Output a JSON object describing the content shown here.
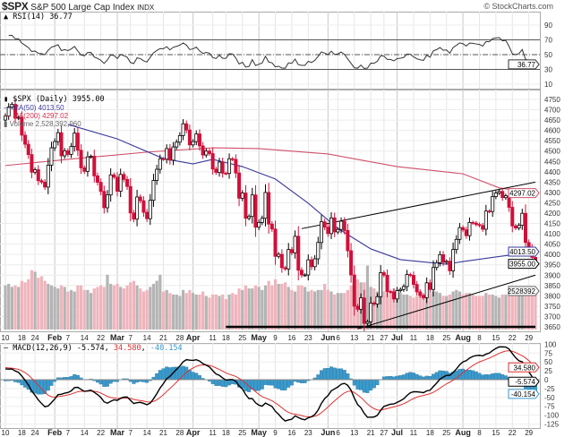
{
  "header": {
    "symbol": "$SPX",
    "name": "S&P 500 Large Cap Index",
    "exchange": "INDX",
    "copyright": "© StockCharts.com"
  },
  "rsi": {
    "label": "RSI(14) 36.77",
    "value": "36.77",
    "axis": [
      90,
      70,
      50,
      30,
      10
    ],
    "overbought": 70,
    "oversold": 30,
    "mid": 50
  },
  "price": {
    "label": "$SPX (Daily) 3955.00",
    "last": "3955.00",
    "ma50_label": "MA(50) 4013.50",
    "ma50_value": "4013.50",
    "ma200_label": "MA(200) 4297.02",
    "ma200_value": "4297.02",
    "volume_label": "Volume 2,528,392,960",
    "volume_value": "2528392",
    "axis": [
      4750,
      4700,
      4650,
      4600,
      4550,
      4500,
      4450,
      4400,
      4350,
      4300,
      4250,
      4200,
      4150,
      4100,
      4050,
      4000,
      3950,
      3900,
      3850,
      3800,
      3750,
      3700,
      3650
    ]
  },
  "macd": {
    "label_prefix": "MACD(12,26,9)",
    "macd": "-5.574",
    "signal": "34.580",
    "hist": "-40.154",
    "axis": [
      100,
      75,
      50,
      25,
      0,
      -25,
      -50,
      -75,
      -100,
      -125
    ]
  },
  "colors": {
    "up": "#ffffff",
    "down": "#d0103a",
    "ma50": "#3a3a9a",
    "ma200": "#d0506a",
    "vol_up": "#b4b4b4",
    "vol_down": "#f0b4bc",
    "macd": "#000000",
    "signal": "#e03030",
    "hist": "#3a9acc",
    "trend": "#000000"
  },
  "x_ticks": [
    {
      "label": "10",
      "date": "Jan 10"
    },
    {
      "label": "18",
      "date": "Jan 18"
    },
    {
      "label": "24",
      "date": "Jan 24"
    },
    {
      "label": "Feb",
      "date": "Feb 1",
      "month": true
    },
    {
      "label": "7",
      "date": "Feb 7"
    },
    {
      "label": "14",
      "date": "Feb 14"
    },
    {
      "label": "22",
      "date": "Feb 22"
    },
    {
      "label": "Mar",
      "date": "Mar 1",
      "month": true
    },
    {
      "label": "7",
      "date": "Mar 7"
    },
    {
      "label": "14",
      "date": "Mar 14"
    },
    {
      "label": "21",
      "date": "Mar 21"
    },
    {
      "label": "28",
      "date": "Mar 28"
    },
    {
      "label": "Apr",
      "date": "Apr 1",
      "month": true
    },
    {
      "label": "11",
      "date": "Apr 11"
    },
    {
      "label": "18",
      "date": "Apr 18"
    },
    {
      "label": "25",
      "date": "Apr 25"
    },
    {
      "label": "May",
      "date": "May 2",
      "month": true
    },
    {
      "label": "9",
      "date": "May 9"
    },
    {
      "label": "16",
      "date": "May 16"
    },
    {
      "label": "23",
      "date": "May 23"
    },
    {
      "label": "Jun",
      "date": "Jun 1",
      "month": true
    },
    {
      "label": "6",
      "date": "Jun 6"
    },
    {
      "label": "13",
      "date": "Jun 13"
    },
    {
      "label": "21",
      "date": "Jun 21"
    },
    {
      "label": "27",
      "date": "Jun 27"
    },
    {
      "label": "Jul",
      "date": "Jul 1",
      "month": true
    },
    {
      "label": "11",
      "date": "Jul 11"
    },
    {
      "label": "18",
      "date": "Jul 18"
    },
    {
      "label": "25",
      "date": "Jul 25"
    },
    {
      "label": "Aug",
      "date": "Aug 1",
      "month": true
    },
    {
      "label": "8",
      "date": "Aug 8"
    },
    {
      "label": "15",
      "date": "Aug 15"
    },
    {
      "label": "22",
      "date": "Aug 22"
    },
    {
      "label": "29",
      "date": "Aug 29"
    }
  ],
  "chart_data": {
    "type": "candlestick",
    "closes": [
      [
        "Jan 10",
        4670
      ],
      [
        "Jan 11",
        4713
      ],
      [
        "Jan 12",
        4726
      ],
      [
        "Jan 13",
        4659
      ],
      [
        "Jan 14",
        4663
      ],
      [
        "Jan 18",
        4577
      ],
      [
        "Jan 19",
        4533
      ],
      [
        "Jan 20",
        4483
      ],
      [
        "Jan 21",
        4398
      ],
      [
        "Jan 24",
        4410
      ],
      [
        "Jan 25",
        4357
      ],
      [
        "Jan 26",
        4350
      ],
      [
        "Jan 27",
        4326
      ],
      [
        "Jan 28",
        4432
      ],
      [
        "Jan 31",
        4516
      ],
      [
        "Feb 1",
        4546
      ],
      [
        "Feb 2",
        4589
      ],
      [
        "Feb 3",
        4477
      ],
      [
        "Feb 4",
        4501
      ],
      [
        "Feb 7",
        4484
      ],
      [
        "Feb 8",
        4522
      ],
      [
        "Feb 9",
        4587
      ],
      [
        "Feb 10",
        4504
      ],
      [
        "Feb 11",
        4419
      ],
      [
        "Feb 14",
        4402
      ],
      [
        "Feb 15",
        4472
      ],
      [
        "Feb 16",
        4475
      ],
      [
        "Feb 17",
        4380
      ],
      [
        "Feb 18",
        4349
      ],
      [
        "Feb 22",
        4305
      ],
      [
        "Feb 23",
        4226
      ],
      [
        "Feb 24",
        4288
      ],
      [
        "Feb 25",
        4385
      ],
      [
        "Feb 28",
        4374
      ],
      [
        "Mar 1",
        4306
      ],
      [
        "Mar 2",
        4387
      ],
      [
        "Mar 3",
        4363
      ],
      [
        "Mar 4",
        4329
      ],
      [
        "Mar 7",
        4201
      ],
      [
        "Mar 8",
        4171
      ],
      [
        "Mar 9",
        4278
      ],
      [
        "Mar 10",
        4260
      ],
      [
        "Mar 11",
        4204
      ],
      [
        "Mar 14",
        4173
      ],
      [
        "Mar 15",
        4262
      ],
      [
        "Mar 16",
        4358
      ],
      [
        "Mar 17",
        4412
      ],
      [
        "Mar 18",
        4463
      ],
      [
        "Mar 21",
        4461
      ],
      [
        "Mar 22",
        4512
      ],
      [
        "Mar 23",
        4456
      ],
      [
        "Mar 24",
        4520
      ],
      [
        "Mar 25",
        4543
      ],
      [
        "Mar 28",
        4575
      ],
      [
        "Mar 29",
        4632
      ],
      [
        "Mar 30",
        4602
      ],
      [
        "Mar 31",
        4530
      ],
      [
        "Apr 1",
        4546
      ],
      [
        "Apr 4",
        4583
      ],
      [
        "Apr 5",
        4525
      ],
      [
        "Apr 6",
        4481
      ],
      [
        "Apr 7",
        4500
      ],
      [
        "Apr 8",
        4488
      ],
      [
        "Apr 11",
        4413
      ],
      [
        "Apr 12",
        4397
      ],
      [
        "Apr 13",
        4447
      ],
      [
        "Apr 14",
        4393
      ],
      [
        "Apr 18",
        4392
      ],
      [
        "Apr 19",
        4463
      ],
      [
        "Apr 20",
        4460
      ],
      [
        "Apr 21",
        4394
      ],
      [
        "Apr 22",
        4272
      ],
      [
        "Apr 25",
        4297
      ],
      [
        "Apr 26",
        4175
      ],
      [
        "Apr 27",
        4184
      ],
      [
        "Apr 28",
        4288
      ],
      [
        "Apr 29",
        4132
      ],
      [
        "May 2",
        4155
      ],
      [
        "May 3",
        4175
      ],
      [
        "May 4",
        4300
      ],
      [
        "May 5",
        4147
      ],
      [
        "May 6",
        4123
      ],
      [
        "May 9",
        3991
      ],
      [
        "May 10",
        4001
      ],
      [
        "May 11",
        3936
      ],
      [
        "May 12",
        3930
      ],
      [
        "May 13",
        4024
      ],
      [
        "May 16",
        4008
      ],
      [
        "May 17",
        4088
      ],
      [
        "May 18",
        3924
      ],
      [
        "May 19",
        3901
      ],
      [
        "May 20",
        3901
      ],
      [
        "May 23",
        3974
      ],
      [
        "May 24",
        3941
      ],
      [
        "May 25",
        3979
      ],
      [
        "May 26",
        4058
      ],
      [
        "May 27",
        4158
      ],
      [
        "May 31",
        4132
      ],
      [
        "Jun 1",
        4101
      ],
      [
        "Jun 2",
        4177
      ],
      [
        "Jun 3",
        4109
      ],
      [
        "Jun 6",
        4121
      ],
      [
        "Jun 7",
        4161
      ],
      [
        "Jun 8",
        4116
      ],
      [
        "Jun 9",
        4018
      ],
      [
        "Jun 10",
        3901
      ],
      [
        "Jun 13",
        3750
      ],
      [
        "Jun 14",
        3735
      ],
      [
        "Jun 15",
        3790
      ],
      [
        "Jun 16",
        3667
      ],
      [
        "Jun 17",
        3675
      ],
      [
        "Jun 21",
        3765
      ],
      [
        "Jun 22",
        3760
      ],
      [
        "Jun 23",
        3796
      ],
      [
        "Jun 24",
        3912
      ],
      [
        "Jun 27",
        3900
      ],
      [
        "Jun 28",
        3821
      ],
      [
        "Jun 29",
        3819
      ],
      [
        "Jun 30",
        3785
      ],
      [
        "Jul 1",
        3825
      ],
      [
        "Jul 5",
        3831
      ],
      [
        "Jul 6",
        3845
      ],
      [
        "Jul 7",
        3903
      ],
      [
        "Jul 8",
        3899
      ],
      [
        "Jul 11",
        3855
      ],
      [
        "Jul 12",
        3819
      ],
      [
        "Jul 13",
        3802
      ],
      [
        "Jul 14",
        3791
      ],
      [
        "Jul 15",
        3863
      ],
      [
        "Jul 18",
        3831
      ],
      [
        "Jul 19",
        3937
      ],
      [
        "Jul 20",
        3960
      ],
      [
        "Jul 21",
        3999
      ],
      [
        "Jul 22",
        3962
      ],
      [
        "Jul 25",
        3967
      ],
      [
        "Jul 26",
        3921
      ],
      [
        "Jul 27",
        4024
      ],
      [
        "Jul 28",
        4073
      ],
      [
        "Jul 29",
        4130
      ],
      [
        "Aug 1",
        4119
      ],
      [
        "Aug 2",
        4091
      ],
      [
        "Aug 3",
        4155
      ],
      [
        "Aug 4",
        4152
      ],
      [
        "Aug 5",
        4145
      ],
      [
        "Aug 8",
        4140
      ],
      [
        "Aug 9",
        4122
      ],
      [
        "Aug 10",
        4210
      ],
      [
        "Aug 11",
        4208
      ],
      [
        "Aug 12",
        4280
      ],
      [
        "Aug 15",
        4297
      ],
      [
        "Aug 16",
        4305
      ],
      [
        "Aug 17",
        4275
      ],
      [
        "Aug 18",
        4284
      ],
      [
        "Aug 19",
        4228
      ],
      [
        "Aug 22",
        4138
      ],
      [
        "Aug 23",
        4128
      ],
      [
        "Aug 24",
        4141
      ],
      [
        "Aug 25",
        4199
      ],
      [
        "Aug 26",
        4058
      ],
      [
        "Aug 29",
        4031
      ],
      [
        "Aug 30",
        3986
      ],
      [
        "Aug 31",
        3955
      ]
    ],
    "volume_billions": [
      2.9,
      3.0,
      2.8,
      2.9,
      2.8,
      3.2,
      3.1,
      3.3,
      3.9,
      3.8,
      3.4,
      3.5,
      3.2,
      3.0,
      2.9,
      2.8,
      2.7,
      2.9,
      2.8,
      2.5,
      2.6,
      2.5,
      2.9,
      2.9,
      2.6,
      2.6,
      2.4,
      2.7,
      2.8,
      2.9,
      2.8,
      3.6,
      3.0,
      2.9,
      3.0,
      2.8,
      2.7,
      2.9,
      3.1,
      3.2,
      2.9,
      2.7,
      2.5,
      2.6,
      2.8,
      3.0,
      3.2,
      3.6,
      2.5,
      2.6,
      2.4,
      2.3,
      2.3,
      2.2,
      2.6,
      2.4,
      2.6,
      2.4,
      2.3,
      2.3,
      2.5,
      2.2,
      2.1,
      2.3,
      2.3,
      2.2,
      2.3,
      2.0,
      2.3,
      2.4,
      2.3,
      2.7,
      2.6,
      2.9,
      2.7,
      2.7,
      2.9,
      2.8,
      2.6,
      2.9,
      3.2,
      2.9,
      3.3,
      3.0,
      3.0,
      3.1,
      2.8,
      2.6,
      2.5,
      2.9,
      2.9,
      2.8,
      2.5,
      2.6,
      2.5,
      2.6,
      2.6,
      3.0,
      2.6,
      2.5,
      2.3,
      2.4,
      2.4,
      2.4,
      2.6,
      2.9,
      3.2,
      3.3,
      3.1,
      3.1,
      4.2,
      2.8,
      2.7,
      2.5,
      3.2,
      2.5,
      2.6,
      2.4,
      2.7,
      2.4,
      2.4,
      2.3,
      2.3,
      2.2,
      2.1,
      2.2,
      2.3,
      2.3,
      2.2,
      2.4,
      2.5,
      2.5,
      2.4,
      2.2,
      2.2,
      2.3,
      2.5,
      2.6,
      2.5,
      2.3,
      2.4,
      2.4,
      2.3,
      2.2,
      2.2,
      2.2,
      2.4,
      2.3,
      2.3,
      2.2,
      2.1,
      2.3,
      2.3,
      2.2,
      2.4,
      2.3,
      2.3,
      2.2,
      2.4,
      2.3,
      2.4,
      2.53
    ],
    "ma50": [
      [
        "Feb 7",
        4629
      ],
      [
        "Mar 1",
        4559
      ],
      [
        "Mar 21",
        4464
      ],
      [
        "Apr 1",
        4438
      ],
      [
        "Apr 11",
        4460
      ],
      [
        "Apr 25",
        4425
      ],
      [
        "May 9",
        4365
      ],
      [
        "May 23",
        4248
      ],
      [
        "Jun 6",
        4126
      ],
      [
        "Jun 21",
        4027
      ],
      [
        "Jul 5",
        3975
      ],
      [
        "Jul 25",
        3953
      ],
      [
        "Aug 1",
        3966
      ],
      [
        "Aug 15",
        3988
      ],
      [
        "Aug 31",
        4013.5
      ]
    ],
    "ma200": [
      [
        "Jan 10",
        4430
      ],
      [
        "Feb 7",
        4460
      ],
      [
        "Mar 14",
        4495
      ],
      [
        "Apr 11",
        4516
      ],
      [
        "May 2",
        4512
      ],
      [
        "Jun 1",
        4486
      ],
      [
        "Jul 1",
        4425
      ],
      [
        "Aug 1",
        4390
      ],
      [
        "Aug 16",
        4322
      ],
      [
        "Aug 31",
        4297.02
      ]
    ],
    "trendlines": [
      [
        [
          "May 19",
          4125
        ],
        [
          "Aug 31",
          4350
        ]
      ],
      [
        [
          "Jun 14",
          3640
        ],
        [
          "Aug 31",
          3900
        ]
      ],
      [
        [
          "Apr 18",
          3650
        ],
        [
          "Aug 31",
          3650
        ]
      ]
    ],
    "rsi_period": 14,
    "macd_params": [
      12,
      26,
      9
    ],
    "ylim_price": [
      3650,
      4750
    ],
    "ylim_rsi": [
      0,
      100
    ],
    "ylim_macd": [
      -125,
      100
    ],
    "grid": true
  }
}
